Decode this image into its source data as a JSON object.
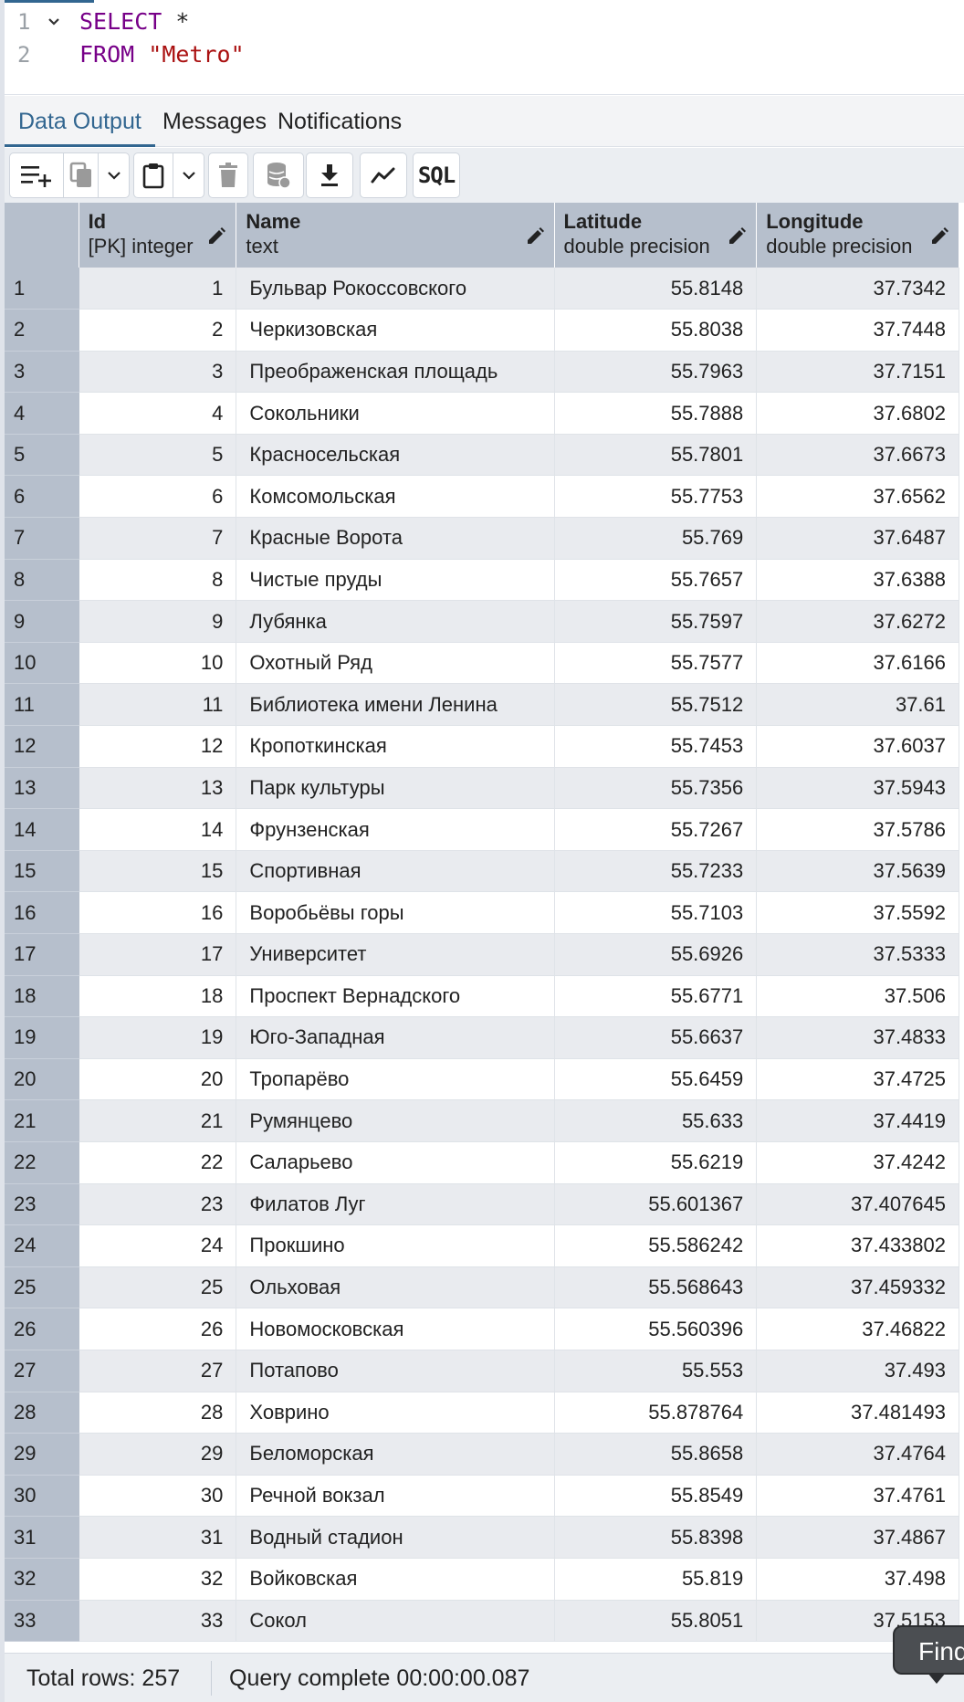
{
  "editor": {
    "lines": [
      {
        "num": "1",
        "keyword": "SELECT",
        "rest": " *"
      },
      {
        "num": "2",
        "keyword": "FROM",
        "string": "\"Metro\""
      }
    ]
  },
  "tabs": [
    {
      "label": "Data Output",
      "active": true
    },
    {
      "label": "Messages",
      "active": false
    },
    {
      "label": "Notifications",
      "active": false
    }
  ],
  "toolbar": {
    "buttons": [
      "add-row-icon",
      "copy-icon",
      "chevron-down-icon",
      "paste-icon",
      "chevron-down-icon",
      "delete-icon",
      "save-data-icon",
      "download-icon",
      "graph-icon",
      "sql-icon"
    ],
    "sql_label": "SQL"
  },
  "columns": [
    {
      "name": "Id",
      "type": "[PK] integer"
    },
    {
      "name": "Name",
      "type": "text"
    },
    {
      "name": "Latitude",
      "type": "double precision"
    },
    {
      "name": "Longitude",
      "type": "double precision"
    }
  ],
  "rows": [
    {
      "n": "1",
      "id": "1",
      "name": "Бульвар Рокоссовского",
      "lat": "55.8148",
      "lon": "37.7342"
    },
    {
      "n": "2",
      "id": "2",
      "name": "Черкизовская",
      "lat": "55.8038",
      "lon": "37.7448"
    },
    {
      "n": "3",
      "id": "3",
      "name": "Преображенская площадь",
      "lat": "55.7963",
      "lon": "37.7151"
    },
    {
      "n": "4",
      "id": "4",
      "name": "Сокольники",
      "lat": "55.7888",
      "lon": "37.6802"
    },
    {
      "n": "5",
      "id": "5",
      "name": "Красносельская",
      "lat": "55.7801",
      "lon": "37.6673"
    },
    {
      "n": "6",
      "id": "6",
      "name": "Комсомольская",
      "lat": "55.7753",
      "lon": "37.6562"
    },
    {
      "n": "7",
      "id": "7",
      "name": "Красные Ворота",
      "lat": "55.769",
      "lon": "37.6487"
    },
    {
      "n": "8",
      "id": "8",
      "name": "Чистые пруды",
      "lat": "55.7657",
      "lon": "37.6388"
    },
    {
      "n": "9",
      "id": "9",
      "name": "Лубянка",
      "lat": "55.7597",
      "lon": "37.6272"
    },
    {
      "n": "10",
      "id": "10",
      "name": "Охотный Ряд",
      "lat": "55.7577",
      "lon": "37.6166"
    },
    {
      "n": "11",
      "id": "11",
      "name": "Библиотека имени Ленина",
      "lat": "55.7512",
      "lon": "37.61"
    },
    {
      "n": "12",
      "id": "12",
      "name": "Кропоткинская",
      "lat": "55.7453",
      "lon": "37.6037"
    },
    {
      "n": "13",
      "id": "13",
      "name": "Парк культуры",
      "lat": "55.7356",
      "lon": "37.5943"
    },
    {
      "n": "14",
      "id": "14",
      "name": "Фрунзенская",
      "lat": "55.7267",
      "lon": "37.5786"
    },
    {
      "n": "15",
      "id": "15",
      "name": "Спортивная",
      "lat": "55.7233",
      "lon": "37.5639"
    },
    {
      "n": "16",
      "id": "16",
      "name": "Воробьёвы горы",
      "lat": "55.7103",
      "lon": "37.5592"
    },
    {
      "n": "17",
      "id": "17",
      "name": "Университет",
      "lat": "55.6926",
      "lon": "37.5333"
    },
    {
      "n": "18",
      "id": "18",
      "name": "Проспект Вернадского",
      "lat": "55.6771",
      "lon": "37.506"
    },
    {
      "n": "19",
      "id": "19",
      "name": "Юго-Западная",
      "lat": "55.6637",
      "lon": "37.4833"
    },
    {
      "n": "20",
      "id": "20",
      "name": "Тропарёво",
      "lat": "55.6459",
      "lon": "37.4725"
    },
    {
      "n": "21",
      "id": "21",
      "name": "Румянцево",
      "lat": "55.633",
      "lon": "37.4419"
    },
    {
      "n": "22",
      "id": "22",
      "name": "Саларьево",
      "lat": "55.6219",
      "lon": "37.4242"
    },
    {
      "n": "23",
      "id": "23",
      "name": "Филатов Луг",
      "lat": "55.601367",
      "lon": "37.407645"
    },
    {
      "n": "24",
      "id": "24",
      "name": "Прокшино",
      "lat": "55.586242",
      "lon": "37.433802"
    },
    {
      "n": "25",
      "id": "25",
      "name": "Ольховая",
      "lat": "55.568643",
      "lon": "37.459332"
    },
    {
      "n": "26",
      "id": "26",
      "name": "Новомосковская",
      "lat": "55.560396",
      "lon": "37.46822"
    },
    {
      "n": "27",
      "id": "27",
      "name": "Потапово",
      "lat": "55.553",
      "lon": "37.493"
    },
    {
      "n": "28",
      "id": "28",
      "name": "Ховрино",
      "lat": "55.878764",
      "lon": "37.481493"
    },
    {
      "n": "29",
      "id": "29",
      "name": "Беломорская",
      "lat": "55.8658",
      "lon": "37.4764"
    },
    {
      "n": "30",
      "id": "30",
      "name": "Речной вокзал",
      "lat": "55.8549",
      "lon": "37.4761"
    },
    {
      "n": "31",
      "id": "31",
      "name": "Водный стадион",
      "lat": "55.8398",
      "lon": "37.4867"
    },
    {
      "n": "32",
      "id": "32",
      "name": "Войковская",
      "lat": "55.819",
      "lon": "37.498"
    },
    {
      "n": "33",
      "id": "33",
      "name": "Сокол",
      "lat": "55.8051",
      "lon": "37.5153"
    }
  ],
  "status": {
    "total_rows": "Total rows: 257",
    "query_complete": "Query complete 00:00:00.087"
  },
  "find_popup": "Find",
  "colors": {
    "accent": "#326690",
    "header_bg": "#b6bfcc",
    "odd_row_bg": "#e9ebef",
    "keyword": "#770088",
    "string": "#aa1111"
  }
}
